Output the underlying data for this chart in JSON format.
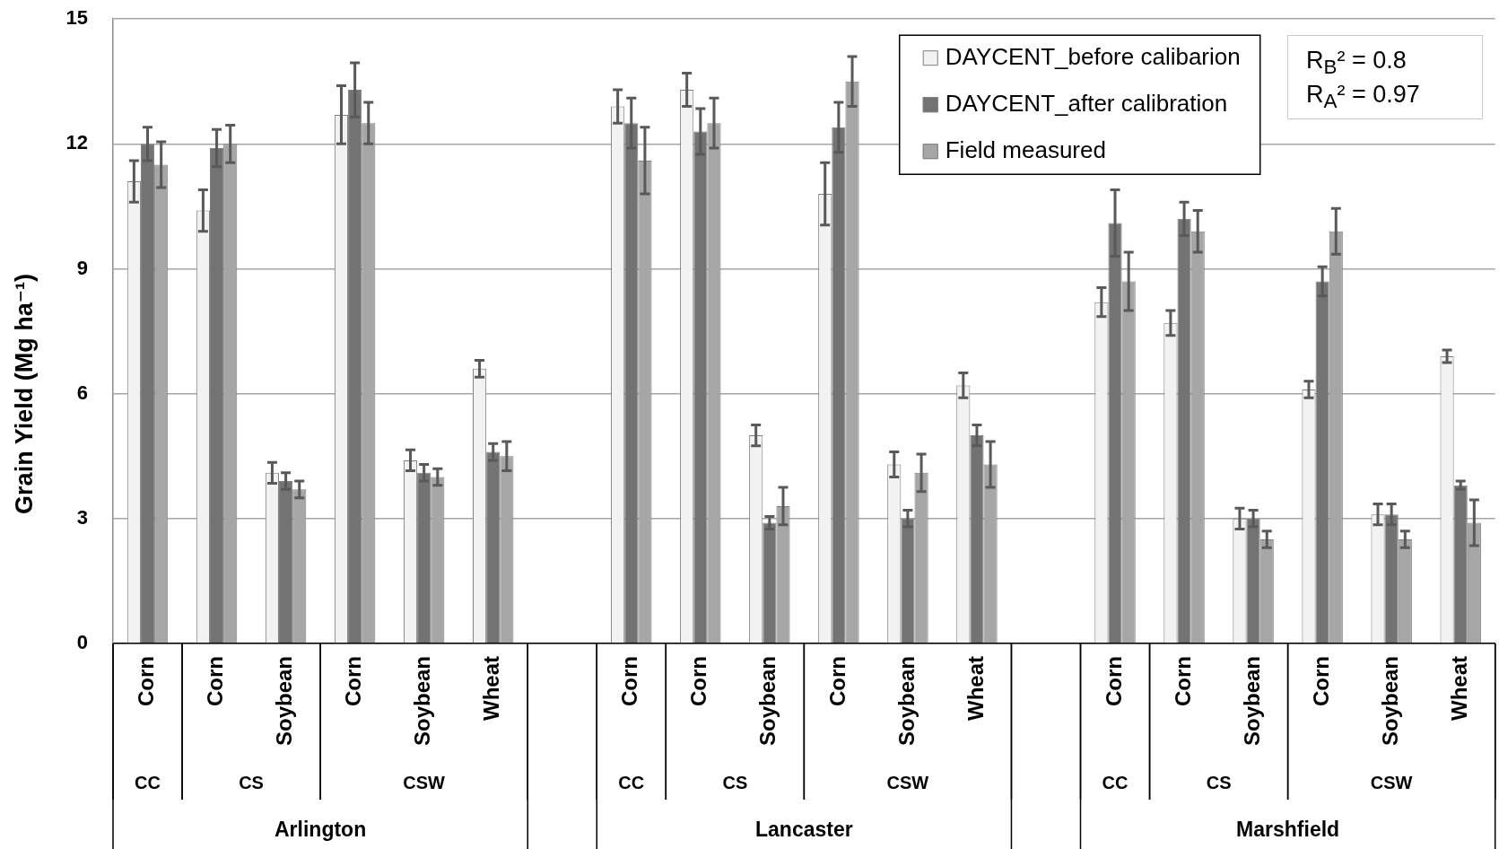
{
  "chart_data": {
    "type": "bar",
    "ylabel": "Grain Yield (Mg ha⁻¹)",
    "categories": [
      "Corn",
      "Corn",
      "Soybean",
      "Corn",
      "Soybean",
      "Wheat",
      null,
      "Corn",
      "Corn",
      "Soybean",
      "Corn",
      "Soybean",
      "Wheat",
      null,
      "Corn",
      "Corn",
      "Soybean",
      "Corn",
      "Soybean",
      "Wheat"
    ],
    "series": [
      {
        "name": "DAYCENT_before calibarion",
        "color": "#f2f2f2",
        "values": [
          11.1,
          10.4,
          4.1,
          12.7,
          4.4,
          6.6,
          null,
          12.9,
          13.3,
          5.0,
          10.8,
          4.3,
          6.2,
          null,
          8.2,
          7.7,
          3.0,
          6.1,
          3.1,
          6.9
        ],
        "errors": [
          0.5,
          0.5,
          0.25,
          0.7,
          0.25,
          0.2,
          null,
          0.4,
          0.4,
          0.25,
          0.75,
          0.3,
          0.3,
          null,
          0.35,
          0.3,
          0.25,
          0.2,
          0.25,
          0.15
        ]
      },
      {
        "name": "DAYCENT_after calibration",
        "color": "#737373",
        "values": [
          12.0,
          11.9,
          3.9,
          13.3,
          4.1,
          4.6,
          null,
          12.5,
          12.3,
          2.9,
          12.4,
          3.0,
          5.0,
          null,
          10.1,
          10.2,
          3.0,
          8.7,
          3.1,
          3.8
        ],
        "errors": [
          0.4,
          0.45,
          0.2,
          0.65,
          0.2,
          0.2,
          null,
          0.6,
          0.55,
          0.15,
          0.6,
          0.2,
          0.25,
          null,
          0.8,
          0.4,
          0.2,
          0.35,
          0.25,
          0.1
        ]
      },
      {
        "name": "Field measured",
        "color": "#a6a6a6",
        "values": [
          11.5,
          12.0,
          3.7,
          12.5,
          4.0,
          4.5,
          null,
          11.6,
          12.5,
          3.3,
          13.5,
          4.1,
          4.3,
          null,
          8.7,
          9.9,
          2.5,
          9.9,
          2.5,
          2.9
        ],
        "errors": [
          0.55,
          0.45,
          0.2,
          0.5,
          0.2,
          0.35,
          null,
          0.8,
          0.6,
          0.45,
          0.6,
          0.45,
          0.55,
          null,
          0.7,
          0.5,
          0.2,
          0.55,
          0.2,
          0.55
        ]
      }
    ],
    "ylim": [
      0,
      15
    ],
    "yticks": [
      0,
      3,
      6,
      9,
      12,
      15
    ],
    "grid": "y",
    "legend": "top right",
    "annotations": [
      "R$_{B}$² = 0.8",
      "R$_{A}$² = 0.97",
      "CC",
      "CS",
      "CSW",
      "CC",
      "CS",
      "CSW",
      "CC",
      "CS",
      "CSW",
      "Arlington",
      "Lancaster",
      "Marshfield"
    ]
  }
}
